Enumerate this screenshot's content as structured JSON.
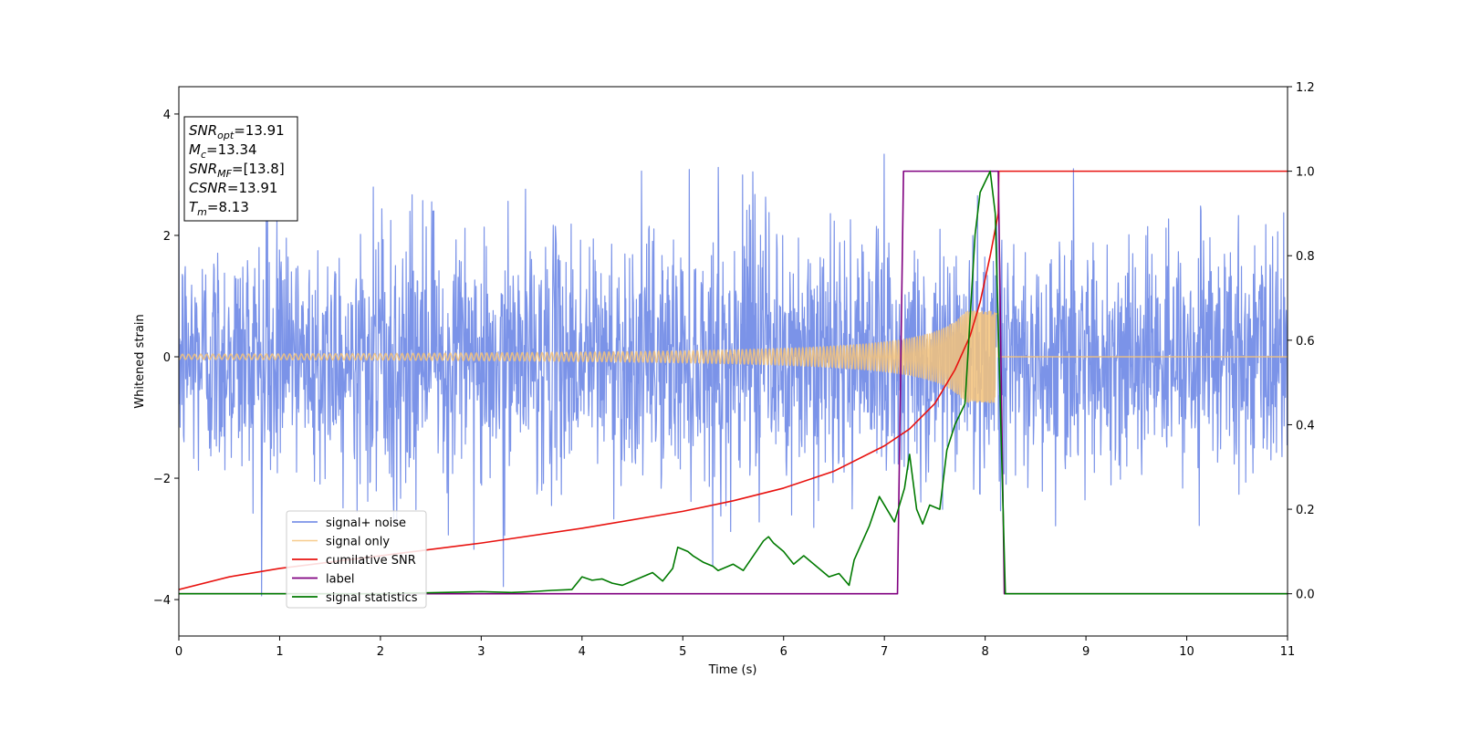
{
  "chart_data": {
    "type": "line",
    "xlabel": "Time (s)",
    "ylabel": "Whitened strain",
    "xlim": [
      0,
      11
    ],
    "ylim_left": [
      -4.6,
      4.45
    ],
    "ylim_right": [
      -0.1,
      1.2
    ],
    "x_ticks": [
      "0",
      "1",
      "2",
      "3",
      "4",
      "5",
      "6",
      "7",
      "8",
      "9",
      "10",
      "11"
    ],
    "y_ticks_left": [
      "−4",
      "−2",
      "0",
      "2",
      "4"
    ],
    "y_ticks_right": [
      "0.0",
      "0.2",
      "0.4",
      "0.6",
      "0.8",
      "1.0",
      "1.2"
    ],
    "grid": false,
    "legend_position": "lower-left",
    "annotations": [
      {
        "main": "SNR",
        "sub": "opt",
        "value": "=13.91"
      },
      {
        "main": "M",
        "sub": "c",
        "value": "=13.34"
      },
      {
        "main": "SNR",
        "sub": "MF",
        "value": "=[13.8]"
      },
      {
        "main": "CSNR",
        "sub": "",
        "value": "=13.91"
      },
      {
        "main": "T",
        "sub": "m",
        "value": "=8.13"
      }
    ],
    "series": [
      {
        "name": "signal+ noise",
        "axis": "left",
        "color": "#7b93e8",
        "kind": "noise",
        "sigma": 1.0,
        "x_range": [
          0,
          11
        ]
      },
      {
        "name": "signal only",
        "axis": "left",
        "color": "#f5c37a",
        "kind": "chirp",
        "amplitude_start": 0.04,
        "amplitude_peak": 0.75,
        "merger_time": 8.13,
        "x_range": [
          0,
          11
        ]
      },
      {
        "name": "cumilative SNR",
        "axis": "right",
        "color": "#e8120f",
        "x": [
          0,
          0.5,
          1,
          2,
          3,
          4,
          5,
          5.5,
          6,
          6.5,
          7,
          7.25,
          7.5,
          7.7,
          7.85,
          7.95,
          8.05,
          8.13,
          8.135,
          11
        ],
        "y": [
          0.01,
          0.04,
          0.06,
          0.09,
          0.12,
          0.155,
          0.195,
          0.22,
          0.25,
          0.29,
          0.35,
          0.39,
          0.45,
          0.53,
          0.61,
          0.69,
          0.8,
          0.9,
          1.0,
          1.0
        ]
      },
      {
        "name": "label",
        "axis": "right",
        "color": "#800080",
        "x": [
          0,
          7.13,
          7.19,
          8.13,
          8.19,
          11
        ],
        "y": [
          0,
          0,
          1,
          1,
          0,
          0
        ]
      },
      {
        "name": "signal statistics",
        "axis": "right",
        "color": "#007a00",
        "x": [
          0,
          1,
          2,
          3,
          3.3,
          3.5,
          3.7,
          3.9,
          4.0,
          4.1,
          4.2,
          4.3,
          4.4,
          4.5,
          4.6,
          4.7,
          4.8,
          4.9,
          4.95,
          5.05,
          5.1,
          5.2,
          5.3,
          5.35,
          5.5,
          5.6,
          5.7,
          5.8,
          5.85,
          5.9,
          6.0,
          6.1,
          6.15,
          6.2,
          6.3,
          6.35,
          6.45,
          6.55,
          6.65,
          6.7,
          6.85,
          6.95,
          7.0,
          7.1,
          7.2,
          7.25,
          7.32,
          7.38,
          7.45,
          7.55,
          7.62,
          7.7,
          7.8,
          7.85,
          7.9,
          7.95,
          8.05,
          8.1,
          8.2,
          11
        ],
        "y": [
          0,
          0,
          0,
          0.005,
          0.003,
          0.005,
          0.008,
          0.01,
          0.04,
          0.032,
          0.035,
          0.025,
          0.02,
          0.03,
          0.04,
          0.05,
          0.03,
          0.06,
          0.11,
          0.1,
          0.09,
          0.075,
          0.065,
          0.055,
          0.07,
          0.055,
          0.09,
          0.125,
          0.135,
          0.12,
          0.1,
          0.07,
          0.08,
          0.09,
          0.07,
          0.06,
          0.04,
          0.048,
          0.02,
          0.08,
          0.16,
          0.23,
          0.21,
          0.17,
          0.25,
          0.33,
          0.2,
          0.165,
          0.21,
          0.2,
          0.34,
          0.4,
          0.45,
          0.65,
          0.85,
          0.95,
          1.0,
          0.9,
          0.0,
          0.0
        ]
      }
    ]
  }
}
